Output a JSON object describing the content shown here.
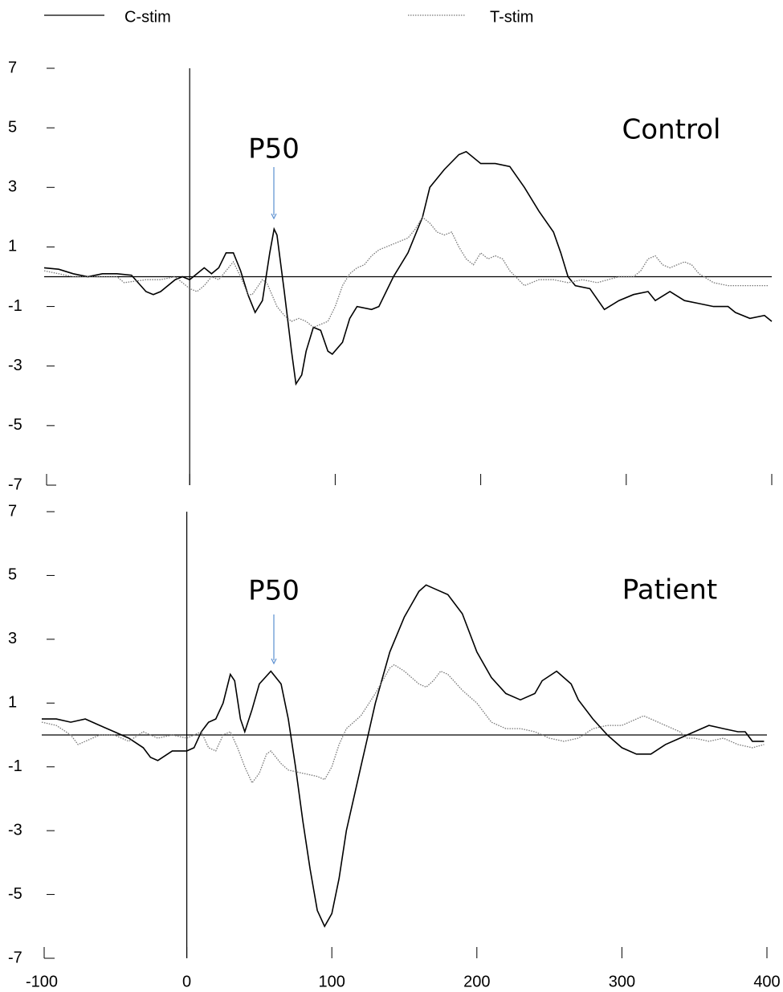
{
  "chart_data": [
    {
      "type": "line",
      "title": "Control",
      "annotation": "P50",
      "ylim": [
        -7,
        7
      ],
      "yticks": [
        7,
        5,
        3,
        1,
        -1,
        -3,
        -5,
        -7
      ],
      "xlim": [
        -100,
        400
      ],
      "xticks": [
        -100,
        0,
        100,
        200,
        300,
        400
      ],
      "show_xtick_labels": false,
      "series": [
        {
          "name": "C-stim",
          "color": "#000000",
          "dash": "solid",
          "x": [
            -100,
            -90,
            -80,
            -70,
            -60,
            -50,
            -40,
            -30,
            -25,
            -20,
            -10,
            -5,
            0,
            5,
            10,
            15,
            20,
            25,
            30,
            35,
            40,
            45,
            50,
            55,
            58,
            60,
            65,
            70,
            73,
            77,
            80,
            85,
            90,
            95,
            98,
            105,
            110,
            115,
            125,
            130,
            140,
            150,
            160,
            165,
            175,
            185,
            190,
            200,
            210,
            220,
            230,
            240,
            250,
            255,
            260,
            265,
            275,
            285,
            295,
            305,
            315,
            320,
            330,
            340,
            350,
            360,
            370,
            375,
            385,
            395,
            400
          ],
          "values": [
            0.3,
            0.25,
            0.1,
            0.0,
            0.1,
            0.1,
            0.05,
            -0.5,
            -0.6,
            -0.5,
            -0.1,
            0.0,
            -0.1,
            0.1,
            0.3,
            0.1,
            0.3,
            0.8,
            0.8,
            0.2,
            -0.6,
            -1.2,
            -0.8,
            0.8,
            1.6,
            1.4,
            -0.5,
            -2.5,
            -3.6,
            -3.3,
            -2.5,
            -1.7,
            -1.8,
            -2.5,
            -2.6,
            -2.2,
            -1.4,
            -1.0,
            -1.1,
            -1.0,
            0.0,
            0.8,
            2.0,
            3.0,
            3.6,
            4.1,
            4.2,
            3.8,
            3.8,
            3.7,
            3.0,
            2.2,
            1.5,
            0.8,
            0.0,
            -0.3,
            -0.4,
            -1.1,
            -0.8,
            -0.6,
            -0.5,
            -0.8,
            -0.5,
            -0.8,
            -0.9,
            -1.0,
            -1.0,
            -1.2,
            -1.4,
            -1.3,
            -1.5
          ]
        },
        {
          "name": "T-stim",
          "color": "#777777",
          "dash": "dotted",
          "x": [
            -100,
            -90,
            -80,
            -70,
            -60,
            -50,
            -45,
            -30,
            -20,
            -10,
            0,
            5,
            10,
            15,
            20,
            25,
            30,
            35,
            40,
            43,
            50,
            53,
            60,
            65,
            70,
            75,
            80,
            85,
            90,
            95,
            100,
            105,
            110,
            115,
            120,
            125,
            130,
            140,
            150,
            155,
            160,
            165,
            170,
            175,
            180,
            185,
            190,
            195,
            200,
            205,
            210,
            215,
            220,
            230,
            240,
            250,
            260,
            270,
            280,
            295,
            305,
            310,
            315,
            320,
            325,
            330,
            335,
            340,
            345,
            350,
            360,
            370,
            380,
            390,
            398
          ],
          "values": [
            0.2,
            0.1,
            0.0,
            0.0,
            0.0,
            0.0,
            -0.2,
            -0.1,
            -0.1,
            0.0,
            -0.4,
            -0.5,
            -0.3,
            0.0,
            -0.1,
            0.2,
            0.5,
            0.0,
            -0.6,
            -0.6,
            -0.1,
            -0.2,
            -1.0,
            -1.3,
            -1.5,
            -1.4,
            -1.5,
            -1.7,
            -1.6,
            -1.5,
            -1.0,
            -0.3,
            0.1,
            0.3,
            0.4,
            0.7,
            0.9,
            1.1,
            1.3,
            1.6,
            2.0,
            1.8,
            1.5,
            1.4,
            1.5,
            1.0,
            0.6,
            0.4,
            0.8,
            0.6,
            0.7,
            0.6,
            0.2,
            -0.3,
            -0.1,
            -0.1,
            -0.2,
            -0.1,
            -0.2,
            0.0,
            0.0,
            0.2,
            0.6,
            0.7,
            0.4,
            0.3,
            0.4,
            0.5,
            0.4,
            0.1,
            -0.2,
            -0.3,
            -0.3,
            -0.3,
            -0.3
          ]
        }
      ]
    },
    {
      "type": "line",
      "title": "Patient",
      "annotation": "P50",
      "ylim": [
        -7,
        7
      ],
      "yticks": [
        7,
        5,
        3,
        1,
        -1,
        -3,
        -5,
        -7
      ],
      "xlim": [
        -100,
        400
      ],
      "xticks": [
        -100,
        0,
        100,
        200,
        300,
        400
      ],
      "show_xtick_labels": true,
      "series": [
        {
          "color": "#000000",
          "dash": "solid",
          "x": [
            -100,
            -90,
            -80,
            -70,
            -60,
            -50,
            -40,
            -30,
            -25,
            -20,
            -10,
            0,
            5,
            10,
            15,
            20,
            25,
            30,
            33,
            37,
            40,
            45,
            50,
            58,
            65,
            70,
            75,
            80,
            85,
            90,
            95,
            100,
            105,
            110,
            120,
            125,
            130,
            140,
            150,
            160,
            165,
            170,
            180,
            190,
            200,
            210,
            220,
            230,
            240,
            245,
            255,
            265,
            270,
            280,
            290,
            300,
            310,
            320,
            330,
            340,
            350,
            360,
            370,
            380,
            385,
            390,
            398
          ],
          "values": [
            0.5,
            0.5,
            0.4,
            0.5,
            0.3,
            0.1,
            -0.1,
            -0.4,
            -0.7,
            -0.8,
            -0.5,
            -0.5,
            -0.4,
            0.1,
            0.4,
            0.5,
            1.0,
            1.9,
            1.7,
            0.5,
            0.1,
            0.8,
            1.6,
            2.0,
            1.6,
            0.5,
            -1.0,
            -2.7,
            -4.2,
            -5.5,
            -6.0,
            -5.6,
            -4.5,
            -3.0,
            -1.0,
            0.0,
            1.0,
            2.6,
            3.7,
            4.5,
            4.7,
            4.6,
            4.4,
            3.8,
            2.6,
            1.8,
            1.3,
            1.1,
            1.3,
            1.7,
            2.0,
            1.6,
            1.1,
            0.5,
            0.0,
            -0.4,
            -0.6,
            -0.6,
            -0.3,
            -0.1,
            0.1,
            0.3,
            0.2,
            0.1,
            0.1,
            -0.2,
            -0.2
          ]
        },
        {
          "color": "#777777",
          "dash": "dotted",
          "x": [
            -100,
            -90,
            -80,
            -75,
            -70,
            -60,
            -50,
            -40,
            -30,
            -20,
            -10,
            0,
            5,
            10,
            15,
            20,
            25,
            30,
            35,
            40,
            45,
            50,
            55,
            58,
            65,
            70,
            80,
            90,
            95,
            100,
            105,
            110,
            120,
            130,
            140,
            143,
            150,
            160,
            165,
            170,
            175,
            180,
            190,
            200,
            210,
            220,
            230,
            240,
            250,
            260,
            270,
            280,
            290,
            300,
            310,
            315,
            320,
            330,
            340,
            345,
            350,
            360,
            370,
            380,
            390,
            398
          ],
          "values": [
            0.4,
            0.3,
            0.0,
            -0.3,
            -0.2,
            0.0,
            0.0,
            -0.2,
            0.1,
            -0.1,
            0.0,
            -0.1,
            0.0,
            0.1,
            -0.4,
            -0.5,
            0.0,
            0.1,
            -0.4,
            -1.0,
            -1.5,
            -1.2,
            -0.6,
            -0.5,
            -0.9,
            -1.1,
            -1.2,
            -1.3,
            -1.4,
            -1.0,
            -0.3,
            0.2,
            0.6,
            1.3,
            2.1,
            2.2,
            2.0,
            1.6,
            1.5,
            1.7,
            2.0,
            1.9,
            1.4,
            1.0,
            0.4,
            0.2,
            0.2,
            0.1,
            -0.1,
            -0.2,
            -0.1,
            0.2,
            0.3,
            0.3,
            0.5,
            0.6,
            0.5,
            0.3,
            0.1,
            -0.1,
            -0.1,
            -0.2,
            -0.1,
            -0.3,
            -0.4,
            -0.3
          ]
        }
      ]
    }
  ]
}
